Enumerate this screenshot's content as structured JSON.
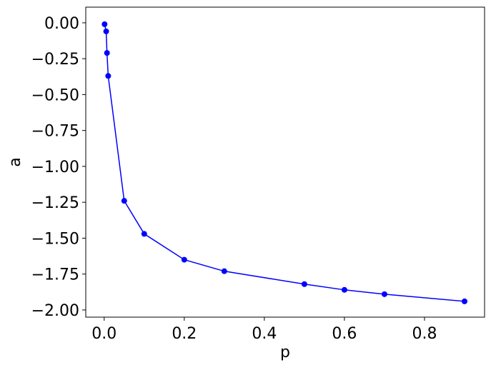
{
  "chart_data": {
    "type": "line",
    "x_label": "p",
    "y_label": "a",
    "x": [
      0.001,
      0.005,
      0.007,
      0.01,
      0.05,
      0.1,
      0.2,
      0.3,
      0.5,
      0.6,
      0.7,
      0.9
    ],
    "series": [
      {
        "color": "#0000ff",
        "values": [
          -0.01,
          -0.06,
          -0.21,
          -0.37,
          -1.24,
          -1.47,
          -1.65,
          -1.73,
          -1.82,
          -1.86,
          -1.89,
          -1.94
        ]
      }
    ],
    "xlim": [
      -0.046,
      0.95
    ],
    "ylim": [
      -2.05,
      0.109
    ],
    "xticks": [
      {
        "value": 0,
        "label": "0.0"
      },
      0.2,
      0.4,
      0.6,
      0.8
    ],
    "yticks": [
      {
        "value": 0,
        "label": "0.00"
      },
      {
        "value": -0.25,
        "label": "−0.25"
      },
      {
        "value": -0.5,
        "label": "−0.50"
      },
      {
        "value": -0.75,
        "label": "−0.75"
      },
      {
        "value": -1,
        "label": "−1.00"
      },
      {
        "value": -1.25,
        "label": "−1.25"
      },
      {
        "value": -1.5,
        "label": "−1.50"
      },
      {
        "value": -1.75,
        "label": "−1.75"
      },
      {
        "value": -2,
        "label": "−2.00"
      }
    ],
    "grid": false
  }
}
